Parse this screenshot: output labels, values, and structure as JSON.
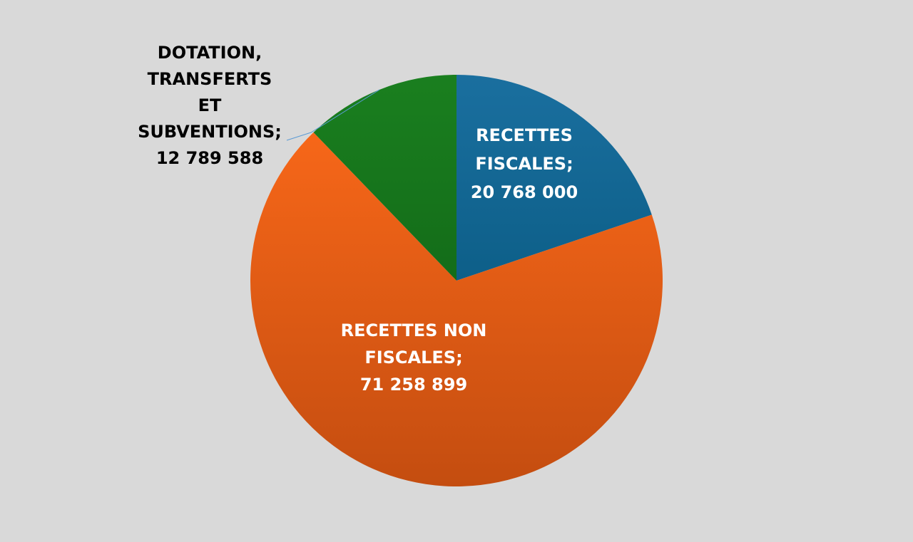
{
  "chart_data": {
    "type": "pie",
    "title": "",
    "legend": "none",
    "slices": [
      {
        "label_lines": [
          "RECETTES",
          "FISCALES;",
          "20 768 000"
        ],
        "value": 20768000,
        "color": "#1a6f9f",
        "color_dark": "#004f72",
        "label_color": "#ffffff"
      },
      {
        "label_lines": [
          "RECETTES NON",
          "FISCALES;",
          "71 258 899"
        ],
        "value": 71258899,
        "color": "#ff6b1a",
        "color_dark": "#c44d10",
        "label_color": "#ffffff"
      },
      {
        "label_lines": [
          "DOTATION,",
          "TRANSFERTS",
          "ET",
          "SUBVENTIONS;",
          "12 789 588"
        ],
        "value": 12789588,
        "color": "#1a7f1f",
        "color_dark": "#0d5a13",
        "label_color": "#000000"
      }
    ]
  }
}
